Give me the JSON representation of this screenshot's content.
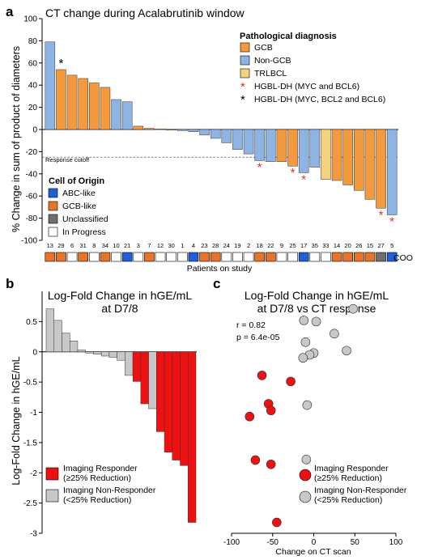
{
  "colors": {
    "gcb": "#F39A3E",
    "non_gcb": "#8EB4E3",
    "trlbcl": "#F7D27E",
    "abc_like": "#1F5FD8",
    "gcb_like": "#E8742A",
    "unclassified": "#6E6E6E",
    "in_progress": "#FFFFFF",
    "responder": "#EE1111",
    "non_responder": "#C8C8C8",
    "star_myc_bcl6": "#E0301E",
    "star_myc_bcl2_bcl6": "#000000"
  },
  "panel_a": {
    "letter": "a",
    "chart_data": {
      "type": "bar",
      "title": "CT change during Acalabrutinib window",
      "ylabel": "% Change in sum of product of diameters",
      "xlabel": "Patients on study",
      "ylim": [
        -100,
        100
      ],
      "yticks": [
        100,
        80,
        60,
        40,
        20,
        0,
        -20,
        -40,
        -60,
        -80,
        -100
      ],
      "response_cutoff": -25,
      "response_cutoff_label": "Response cutoff",
      "categories": [
        "13",
        "29",
        "6",
        "31",
        "8",
        "34",
        "10",
        "21",
        "3",
        "7",
        "12",
        "30",
        "1",
        "4",
        "23",
        "28",
        "24",
        "19",
        "2",
        "18",
        "22",
        "9",
        "25",
        "17",
        "35",
        "33",
        "14",
        "20",
        "26",
        "15",
        "27",
        "5"
      ],
      "values": [
        79,
        54,
        49,
        46,
        42,
        38,
        27,
        25,
        3,
        1,
        0.5,
        0,
        -1,
        -2,
        -5,
        -8,
        -12,
        -18,
        -22,
        -28,
        -29,
        -29,
        -33,
        -39,
        -34,
        -45,
        -46,
        -50,
        -55,
        -63,
        -71,
        -77
      ],
      "diagnosis": [
        "non_gcb",
        "gcb",
        "gcb",
        "gcb",
        "gcb",
        "gcb",
        "non_gcb",
        "non_gcb",
        "gcb",
        "gcb",
        "gcb",
        "gcb",
        "non_gcb",
        "non_gcb",
        "non_gcb",
        "non_gcb",
        "non_gcb",
        "non_gcb",
        "non_gcb",
        "non_gcb",
        "non_gcb",
        "gcb",
        "gcb",
        "non_gcb",
        "non_gcb",
        "trlbcl",
        "gcb",
        "gcb",
        "gcb",
        "gcb",
        "gcb",
        "non_gcb"
      ],
      "markers": [
        "",
        "black",
        "",
        "",
        "",
        "",
        "",
        "",
        "",
        "",
        "",
        "",
        "",
        "",
        "",
        "",
        "",
        "",
        "",
        "red",
        "",
        "",
        "red",
        "red",
        "",
        "",
        "",
        "",
        "",
        "",
        "red",
        "red"
      ],
      "coo": [
        "gcb_like",
        "gcb_like",
        "in_progress",
        "gcb_like",
        "in_progress",
        "gcb_like",
        "in_progress",
        "abc_like",
        "in_progress",
        "gcb_like",
        "in_progress",
        "in_progress",
        "in_progress",
        "abc_like",
        "gcb_like",
        "gcb_like",
        "in_progress",
        "in_progress",
        "in_progress",
        "gcb_like",
        "gcb_like",
        "in_progress",
        "in_progress",
        "abc_like",
        "in_progress",
        "in_progress",
        "gcb_like",
        "gcb_like",
        "gcb_like",
        "gcb_like",
        "unclassified",
        "abc_like"
      ],
      "coo_label": "COO",
      "diagnosis_legend": {
        "title": "Pathological diagnosis",
        "items": [
          {
            "key": "gcb",
            "label": "GCB"
          },
          {
            "key": "non_gcb",
            "label": "Non-GCB"
          },
          {
            "key": "trlbcl",
            "label": "TRLBCL"
          }
        ],
        "marker_items": [
          {
            "symbol": "*",
            "color": "red",
            "label": "HGBL-DH (MYC and BCL6)"
          },
          {
            "symbol": "*",
            "color": "black",
            "label": "HGBL-DH (MYC, BCL2 and BCL6)"
          }
        ]
      },
      "coo_legend": {
        "title": "Cell of Origin",
        "items": [
          {
            "key": "abc_like",
            "label": "ABC-like"
          },
          {
            "key": "gcb_like",
            "label": "GCB-like"
          },
          {
            "key": "unclassified",
            "label": "Unclassified"
          },
          {
            "key": "in_progress",
            "label": "In Progress"
          }
        ]
      }
    }
  },
  "panel_b": {
    "letter": "b",
    "chart_data": {
      "type": "bar",
      "title_line1": "Log-Fold Change in hGE/mL",
      "title_line2": "at D7/8",
      "ylabel": "Log-Fold Change in hGE/mL",
      "ylim": [
        -3,
        1
      ],
      "yticks": [
        0.5,
        0,
        -0.5,
        -1,
        -1.5,
        -2,
        -2.5,
        -3
      ],
      "values": [
        0.71,
        0.52,
        0.31,
        0.18,
        0.03,
        -0.02,
        -0.04,
        -0.07,
        -0.09,
        -0.14,
        -0.39,
        -0.49,
        -0.86,
        -0.94,
        -1.32,
        -1.66,
        -1.79,
        -1.88,
        -2.82
      ],
      "responder": [
        false,
        false,
        false,
        false,
        false,
        false,
        false,
        false,
        false,
        false,
        false,
        true,
        true,
        false,
        true,
        true,
        true,
        true,
        true
      ],
      "legend": [
        {
          "key": "responder",
          "line1": "Imaging Responder",
          "line2": "(≥25% Reduction)"
        },
        {
          "key": "non_responder",
          "line1": "Imaging Non-Responder",
          "line2": "(<25% Reduction)"
        }
      ]
    }
  },
  "panel_c": {
    "letter": "c",
    "chart_data": {
      "type": "scatter",
      "title_line1": "Log-Fold Change in hGE/mL",
      "title_line2": "at D7/8 vs CT response",
      "xlabel": "Change on CT scan",
      "xlim": [
        -100,
        100
      ],
      "xticks": [
        -100,
        -50,
        0,
        50,
        100
      ],
      "ylim": [
        -3,
        1
      ],
      "stats_r": "r = 0.82",
      "stats_p": "p = 6.4e-05",
      "points": [
        {
          "x": 48,
          "y": 0.71,
          "responder": false
        },
        {
          "x": 3,
          "y": 0.5,
          "responder": false
        },
        {
          "x": -12,
          "y": 0.52,
          "responder": false
        },
        {
          "x": 25,
          "y": 0.3,
          "responder": false
        },
        {
          "x": -10,
          "y": 0.16,
          "responder": false
        },
        {
          "x": 40,
          "y": 0.02,
          "responder": false
        },
        {
          "x": 0,
          "y": -0.02,
          "responder": false
        },
        {
          "x": -5,
          "y": -0.05,
          "responder": false
        },
        {
          "x": -13,
          "y": -0.1,
          "responder": false
        },
        {
          "x": -8,
          "y": -0.88,
          "responder": false
        },
        {
          "x": -9,
          "y": -1.78,
          "responder": false
        },
        {
          "x": -63,
          "y": -0.39,
          "responder": true
        },
        {
          "x": -28,
          "y": -0.49,
          "responder": true
        },
        {
          "x": -55,
          "y": -0.86,
          "responder": true
        },
        {
          "x": -52,
          "y": -0.97,
          "responder": true
        },
        {
          "x": -78,
          "y": -1.07,
          "responder": true
        },
        {
          "x": -71,
          "y": -1.79,
          "responder": true
        },
        {
          "x": -52,
          "y": -1.86,
          "responder": true
        },
        {
          "x": -45,
          "y": -2.82,
          "responder": true
        }
      ],
      "legend": [
        {
          "key": "responder",
          "line1": "Imaging Responder",
          "line2": "(≥25% Reduction)"
        },
        {
          "key": "non_responder",
          "line1": "Imaging Non-Responder",
          "line2": "(<25% Reduction)"
        }
      ]
    }
  }
}
